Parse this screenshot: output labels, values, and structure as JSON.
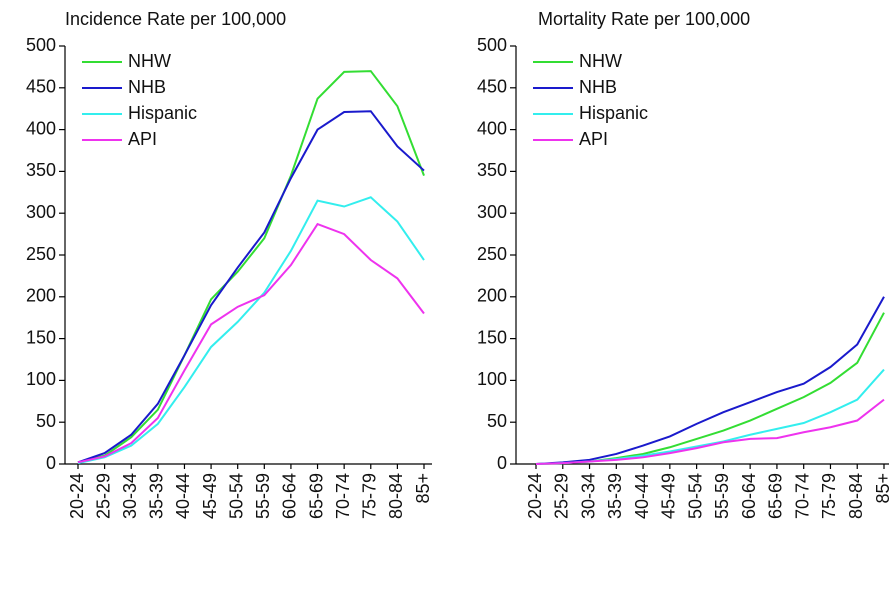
{
  "chart_data": [
    {
      "type": "line",
      "title": "Incidence Rate per 100,000",
      "categories": [
        "20-24",
        "25-29",
        "30-34",
        "35-39",
        "40-44",
        "45-49",
        "50-54",
        "55-59",
        "60-64",
        "65-69",
        "70-74",
        "75-79",
        "80-84",
        "85+"
      ],
      "series": [
        {
          "name": "NHW",
          "color": "#33dd33",
          "values": [
            2,
            10,
            32,
            65,
            130,
            197,
            230,
            270,
            345,
            437,
            469,
            470,
            428,
            345
          ]
        },
        {
          "name": "NHB",
          "color": "#1a1acc",
          "values": [
            2,
            13,
            35,
            72,
            130,
            190,
            235,
            277,
            342,
            400,
            421,
            422,
            380,
            351
          ]
        },
        {
          "name": "Hispanic",
          "color": "#33eeee",
          "values": [
            1,
            8,
            22,
            48,
            92,
            140,
            170,
            205,
            255,
            315,
            308,
            319,
            290,
            244
          ]
        },
        {
          "name": "API",
          "color": "#ee33ee",
          "values": [
            2,
            9,
            25,
            55,
            112,
            167,
            188,
            202,
            238,
            287,
            275,
            244,
            222,
            180
          ]
        }
      ],
      "ylim": [
        0,
        500
      ],
      "yticks": [
        0,
        50,
        100,
        150,
        200,
        250,
        300,
        350,
        400,
        450,
        500
      ],
      "legend": "upper left"
    },
    {
      "type": "line",
      "title": "Mortality Rate per 100,000",
      "categories": [
        "20-24",
        "25-29",
        "30-34",
        "35-39",
        "40-44",
        "45-49",
        "50-54",
        "55-59",
        "60-64",
        "65-69",
        "70-74",
        "75-79",
        "80-84",
        "85+"
      ],
      "series": [
        {
          "name": "NHW",
          "color": "#33dd33",
          "values": [
            0,
            1,
            3,
            7,
            12,
            20,
            30,
            40,
            52,
            66,
            80,
            97,
            121,
            181
          ]
        },
        {
          "name": "NHB",
          "color": "#1a1acc",
          "values": [
            0,
            2,
            5,
            12,
            22,
            33,
            48,
            62,
            74,
            86,
            96,
            116,
            143,
            200
          ]
        },
        {
          "name": "Hispanic",
          "color": "#33eeee",
          "values": [
            0,
            1,
            3,
            6,
            10,
            15,
            21,
            27,
            35,
            42,
            49,
            62,
            77,
            113
          ]
        },
        {
          "name": "API",
          "color": "#ee33ee",
          "values": [
            0,
            1,
            3,
            5,
            8,
            13,
            19,
            26,
            30,
            31,
            38,
            44,
            52,
            77
          ]
        }
      ],
      "ylim": [
        0,
        500
      ],
      "yticks": [
        0,
        50,
        100,
        150,
        200,
        250,
        300,
        350,
        400,
        450,
        500
      ],
      "legend": "upper left"
    }
  ]
}
